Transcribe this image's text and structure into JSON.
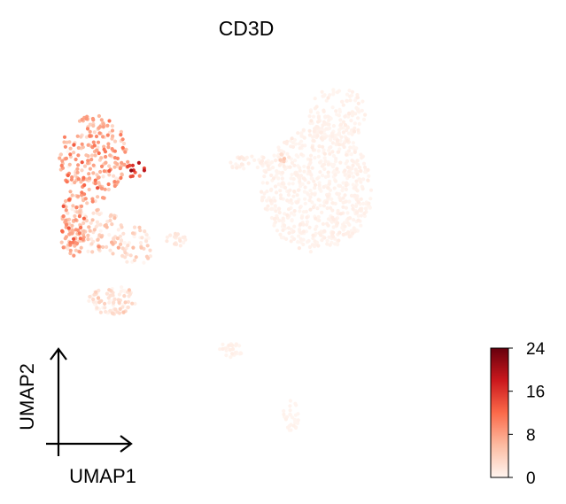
{
  "chart_data": {
    "type": "scatter",
    "title": "CD3D",
    "xlabel": "UMAP1",
    "ylabel": "UMAP2",
    "grid": false,
    "colorbar": {
      "label": "",
      "colormap": "Reds",
      "range": [
        0,
        24
      ],
      "ticks": [
        0,
        8,
        16,
        24
      ],
      "tick_labels": [
        "0",
        "8",
        "16",
        "24"
      ],
      "colors": [
        "#fff5f0",
        "#fcbba1",
        "#fb6a4a",
        "#cb181d",
        "#67000d"
      ]
    },
    "clusters": [
      {
        "cx": 2.2,
        "cy": 14.1,
        "rx": 1.3,
        "ry": 1.9,
        "n": 240,
        "mean_expr": 6.5,
        "sd_expr": 3.0
      },
      {
        "cx": 3.8,
        "cy": 13.6,
        "rx": 0.4,
        "ry": 0.35,
        "n": 12,
        "mean_expr": 18,
        "sd_expr": 4
      },
      {
        "cx": 1.4,
        "cy": 11.3,
        "rx": 0.5,
        "ry": 1.3,
        "n": 110,
        "mean_expr": 5.5,
        "sd_expr": 3.5
      },
      {
        "cx": 2.5,
        "cy": 11.0,
        "rx": 0.9,
        "ry": 1.0,
        "n": 80,
        "mean_expr": 2.5,
        "sd_expr": 2.0
      },
      {
        "cx": 3.8,
        "cy": 10.4,
        "rx": 0.6,
        "ry": 0.9,
        "n": 45,
        "mean_expr": 2.2,
        "sd_expr": 1.8
      },
      {
        "cx": 2.9,
        "cy": 8.2,
        "rx": 0.9,
        "ry": 0.6,
        "n": 90,
        "mean_expr": 1.4,
        "sd_expr": 1.5
      },
      {
        "cx": 5.3,
        "cy": 10.7,
        "rx": 0.4,
        "ry": 0.3,
        "n": 18,
        "mean_expr": 0.8,
        "sd_expr": 0.6
      },
      {
        "cx": 10.6,
        "cy": 12.8,
        "rx": 2.1,
        "ry": 2.6,
        "n": 650,
        "mean_expr": 0.25,
        "sd_expr": 0.35
      },
      {
        "cx": 11.4,
        "cy": 15.9,
        "rx": 1.1,
        "ry": 1.2,
        "n": 130,
        "mean_expr": 0.2,
        "sd_expr": 0.3
      },
      {
        "cx": 8.2,
        "cy": 13.9,
        "rx": 0.9,
        "ry": 0.35,
        "n": 40,
        "mean_expr": 0.4,
        "sd_expr": 0.4
      },
      {
        "cx": 9.2,
        "cy": 14.1,
        "rx": 0.25,
        "ry": 0.2,
        "n": 10,
        "mean_expr": 3.0,
        "sd_expr": 1.5
      },
      {
        "cx": 7.3,
        "cy": 6.1,
        "rx": 0.5,
        "ry": 0.3,
        "n": 28,
        "mean_expr": 0.3,
        "sd_expr": 0.3
      },
      {
        "cx": 9.6,
        "cy": 3.3,
        "rx": 0.3,
        "ry": 0.8,
        "n": 30,
        "mean_expr": 0.15,
        "sd_expr": 0.2
      }
    ],
    "xlim": [
      0,
      16
    ],
    "ylim": [
      0,
      20
    ]
  }
}
